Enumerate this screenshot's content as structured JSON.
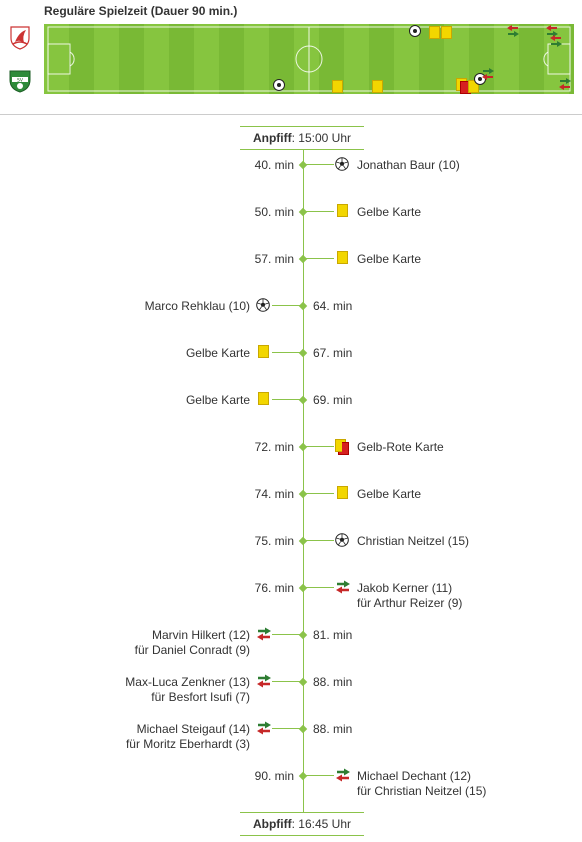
{
  "header": {
    "title": "Reguläre Spielzeit (Dauer 90 min.)"
  },
  "teams": {
    "home_logo": "home-team-crest-icon",
    "away_logo": "away-team-crest-icon"
  },
  "colors": {
    "pitch_light": "#86c53f",
    "pitch_dark": "#79b935",
    "timeline": "#8bc34a",
    "yellow_card": "#f2d600",
    "red_card": "#d62020"
  },
  "timeline": {
    "kickoff_label": "Anpfiff",
    "kickoff_time": ": 15:00 Uhr",
    "end_label": "Abpfiff",
    "end_time": ": 16:45 Uhr",
    "events": [
      {
        "minute": "40. min",
        "side": "right",
        "icon": "goal-ball-icon",
        "line1": "Jonathan Baur (10)",
        "line2": ""
      },
      {
        "minute": "50. min",
        "side": "right",
        "icon": "yellow-card-icon",
        "line1": "Gelbe Karte",
        "line2": ""
      },
      {
        "minute": "57. min",
        "side": "right",
        "icon": "yellow-card-icon",
        "line1": "Gelbe Karte",
        "line2": ""
      },
      {
        "minute": "64. min",
        "side": "left",
        "icon": "goal-ball-icon",
        "line1": "Marco Rehklau (10)",
        "line2": ""
      },
      {
        "minute": "67. min",
        "side": "left",
        "icon": "yellow-card-icon",
        "line1": "Gelbe Karte",
        "line2": ""
      },
      {
        "minute": "69. min",
        "side": "left",
        "icon": "yellow-card-icon",
        "line1": "Gelbe Karte",
        "line2": ""
      },
      {
        "minute": "72. min",
        "side": "right",
        "icon": "yellow-red-card-icon",
        "line1": "Gelb-Rote Karte",
        "line2": ""
      },
      {
        "minute": "74. min",
        "side": "right",
        "icon": "yellow-card-icon",
        "line1": "Gelbe Karte",
        "line2": ""
      },
      {
        "minute": "75. min",
        "side": "right",
        "icon": "goal-ball-icon",
        "line1": "Christian Neitzel (15)",
        "line2": ""
      },
      {
        "minute": "76. min",
        "side": "right",
        "icon": "substitution-icon",
        "line1": "Jakob Kerner (11)",
        "line2": "für Arthur Reizer (9)"
      },
      {
        "minute": "81. min",
        "side": "left",
        "icon": "substitution-icon",
        "line1": "Marvin Hilkert (12)",
        "line2": "für Daniel Conradt (9)"
      },
      {
        "minute": "88. min",
        "side": "left",
        "icon": "substitution-icon",
        "line1": "Max-Luca Zenkner (13)",
        "line2": "für Besfort Isufi (7)"
      },
      {
        "minute": "88. min",
        "side": "left",
        "icon": "substitution-icon",
        "line1": "Michael Steigauf (14)",
        "line2": "für Moritz Eberhardt (3)"
      },
      {
        "minute": "90. min",
        "side": "right",
        "icon": "substitution-icon",
        "line1": "Michael Dechant (12)",
        "line2": "für Christian Neitzel (15)"
      }
    ]
  }
}
